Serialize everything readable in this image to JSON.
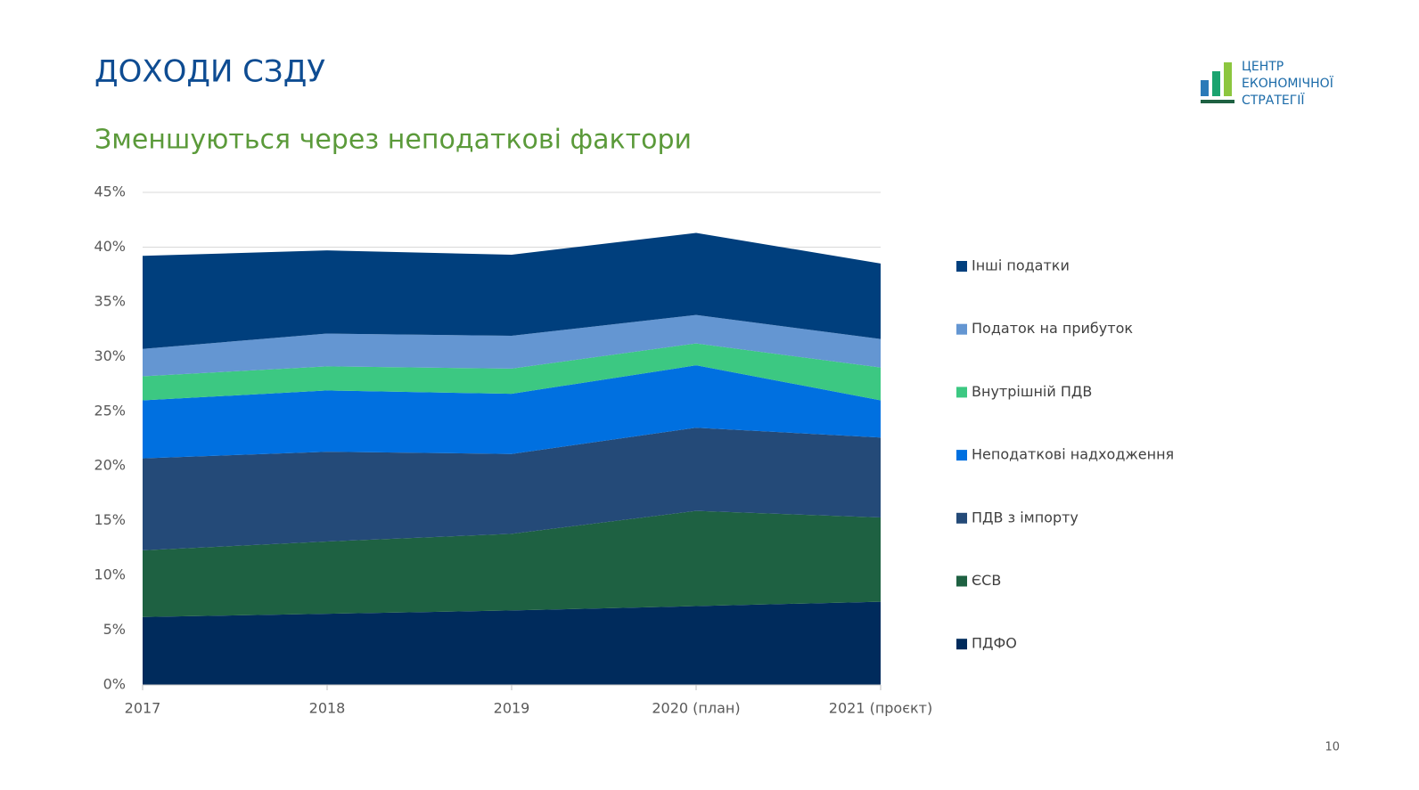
{
  "chart_data": {
    "type": "stacked-area",
    "title": "ДОХОДИ СЗДУ",
    "subtitle": "Зменшуються через неподаткові фактори",
    "categories": [
      "2017",
      "2018",
      "2019",
      "2020 (план)",
      "2021 (проєкт)"
    ],
    "series": [
      {
        "name": "ПДФО",
        "color": "#002b5c",
        "values": [
          6.2,
          6.5,
          6.8,
          7.2,
          7.6
        ]
      },
      {
        "name": "ЄСВ",
        "color": "#1e6142",
        "values": [
          6.1,
          6.6,
          7.0,
          8.7,
          7.7
        ]
      },
      {
        "name": "ПДВ з імпорту",
        "color": "#244a78",
        "values": [
          8.4,
          8.2,
          7.3,
          7.6,
          7.3
        ]
      },
      {
        "name": "Неподаткові надходження",
        "color": "#0070e0",
        "values": [
          5.3,
          5.6,
          5.5,
          5.7,
          3.4
        ]
      },
      {
        "name": "Внутрішній ПДВ",
        "color": "#3cc882",
        "values": [
          2.2,
          2.2,
          2.3,
          2.0,
          3.0
        ]
      },
      {
        "name": "Податок на прибуток",
        "color": "#6496d2",
        "values": [
          2.5,
          3.0,
          3.0,
          2.6,
          2.6
        ]
      },
      {
        "name": "Інші податки",
        "color": "#003f7d",
        "values": [
          8.5,
          7.6,
          7.4,
          7.5,
          6.9
        ]
      }
    ],
    "ylim": [
      0,
      45
    ],
    "yticks": [
      {
        "value": 0,
        "label": "0%"
      },
      {
        "value": 5,
        "label": "5%"
      },
      {
        "value": 10,
        "label": "10%"
      },
      {
        "value": 15,
        "label": "15%"
      },
      {
        "value": 20,
        "label": "20%"
      },
      {
        "value": 25,
        "label": "25%"
      },
      {
        "value": 30,
        "label": "30%"
      },
      {
        "value": 35,
        "label": "35%"
      },
      {
        "value": 40,
        "label": "40%"
      },
      {
        "value": 45,
        "label": "45%"
      }
    ],
    "grid": true,
    "legend": "right"
  },
  "logo": [
    "ЦЕНТР",
    "ЕКОНОМІЧНОЇ",
    "СТРАТЕГІЇ"
  ],
  "page_number": 10
}
